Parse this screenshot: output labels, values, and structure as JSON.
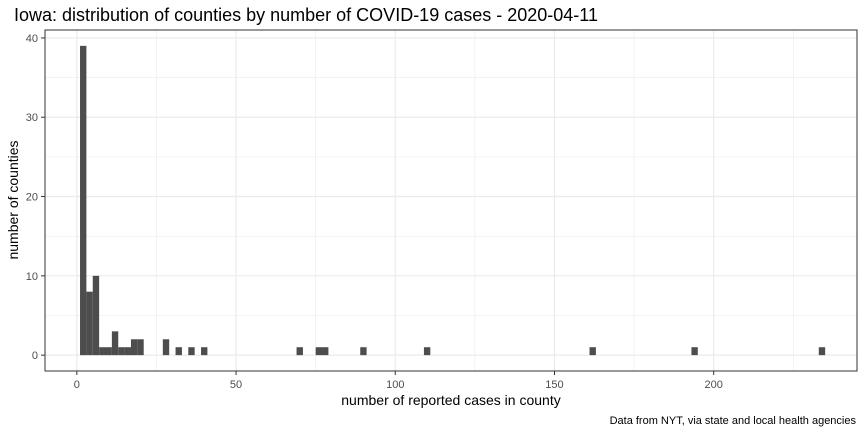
{
  "chart_data": {
    "type": "bar",
    "title": "Iowa: distribution of counties by number of COVID-19 cases - 2020-04-11",
    "xlabel": "number of reported cases in county",
    "ylabel": "number of counties",
    "caption": "Data from NYT, via state and local health agencies",
    "bin_width": 2,
    "xlim": [
      -10,
      245
    ],
    "ylim": [
      -2,
      41
    ],
    "x_ticks": [
      0,
      50,
      100,
      150,
      200
    ],
    "y_ticks": [
      0,
      10,
      20,
      30,
      40
    ],
    "x_tick_labels": [
      "0",
      "50",
      "100",
      "150",
      "200"
    ],
    "y_tick_labels": [
      "0",
      "10",
      "20",
      "30",
      "40"
    ],
    "grid": true,
    "colors": {
      "bar": "#4d4d4d",
      "grid": "#ebebeb",
      "panel_border": "#333333"
    },
    "bins": [
      {
        "x_start": 1,
        "x_end": 3,
        "count": 39
      },
      {
        "x_start": 3,
        "x_end": 5,
        "count": 8
      },
      {
        "x_start": 5,
        "x_end": 7,
        "count": 10
      },
      {
        "x_start": 7,
        "x_end": 9,
        "count": 1
      },
      {
        "x_start": 9,
        "x_end": 11,
        "count": 1
      },
      {
        "x_start": 11,
        "x_end": 13,
        "count": 3
      },
      {
        "x_start": 13,
        "x_end": 15,
        "count": 1
      },
      {
        "x_start": 15,
        "x_end": 17,
        "count": 1
      },
      {
        "x_start": 17,
        "x_end": 19,
        "count": 2
      },
      {
        "x_start": 19,
        "x_end": 21,
        "count": 2
      },
      {
        "x_start": 27,
        "x_end": 29,
        "count": 2
      },
      {
        "x_start": 31,
        "x_end": 33,
        "count": 1
      },
      {
        "x_start": 35,
        "x_end": 37,
        "count": 1
      },
      {
        "x_start": 39,
        "x_end": 41,
        "count": 1
      },
      {
        "x_start": 69,
        "x_end": 71,
        "count": 1
      },
      {
        "x_start": 75,
        "x_end": 77,
        "count": 1
      },
      {
        "x_start": 77,
        "x_end": 79,
        "count": 1
      },
      {
        "x_start": 89,
        "x_end": 91,
        "count": 1
      },
      {
        "x_start": 109,
        "x_end": 111,
        "count": 1
      },
      {
        "x_start": 161,
        "x_end": 163,
        "count": 1
      },
      {
        "x_start": 193,
        "x_end": 195,
        "count": 1
      },
      {
        "x_start": 233,
        "x_end": 235,
        "count": 1
      }
    ]
  }
}
